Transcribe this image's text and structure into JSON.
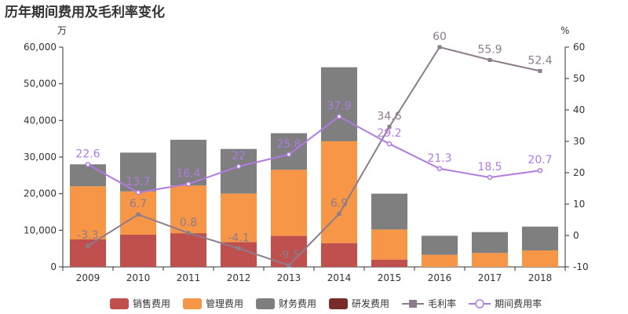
{
  "chart_data": {
    "type": "bar",
    "title": "历年期间费用及毛利率变化",
    "left_unit": "万",
    "right_unit": "%",
    "categories": [
      "2009",
      "2010",
      "2011",
      "2012",
      "2013",
      "2014",
      "2015",
      "2016",
      "2017",
      "2018"
    ],
    "left_axis": {
      "min": 0,
      "max": 60000,
      "ticks": [
        "0",
        "10,000",
        "20,000",
        "30,000",
        "40,000",
        "50,000",
        "60,000"
      ]
    },
    "right_axis": {
      "min": -10,
      "max": 60,
      "ticks": [
        "-10",
        "0",
        "10",
        "20",
        "30",
        "40",
        "50",
        "60"
      ]
    },
    "bar_series": [
      {
        "name": "销售费用",
        "color": "#c0504d",
        "values": [
          7500,
          8800,
          9200,
          6800,
          8500,
          6500,
          2000,
          0,
          0,
          0
        ]
      },
      {
        "name": "管理费用",
        "color": "#f79646",
        "values": [
          14500,
          11800,
          13000,
          13200,
          18000,
          27800,
          8200,
          3300,
          3800,
          4500
        ]
      },
      {
        "name": "财务费用",
        "color": "#7f7f7f",
        "values": [
          6000,
          10600,
          12500,
          12200,
          10000,
          20200,
          9800,
          5200,
          5700,
          6500
        ]
      },
      {
        "name": "研发费用",
        "color": "#772c2a",
        "values": [
          0,
          0,
          0,
          0,
          0,
          0,
          0,
          0,
          0,
          0
        ]
      }
    ],
    "line_series": [
      {
        "name": "毛利率",
        "color": "#8c7c8c",
        "marker": "square",
        "values": [
          -3.3,
          6.7,
          0.8,
          -4.1,
          -9.5,
          6.9,
          34.6,
          60,
          55.9,
          52.4
        ],
        "labels": [
          "-3.3",
          "6.7",
          "0.8",
          "-4.1",
          "-9.5",
          "6.9",
          "34.6",
          "60",
          "55.9",
          "52.4"
        ]
      },
      {
        "name": "期间费用率",
        "color": "#b07ae0",
        "marker": "circle",
        "values": [
          22.6,
          13.7,
          16.4,
          22,
          25.8,
          37.9,
          29.2,
          21.3,
          18.5,
          20.7
        ],
        "labels": [
          "22.6",
          "13.7",
          "16.4",
          "22",
          "25.8",
          "37.9",
          "29.2",
          "21.3",
          "18.5",
          "20.7"
        ]
      }
    ],
    "grid": false,
    "legend_position": "bottom"
  }
}
